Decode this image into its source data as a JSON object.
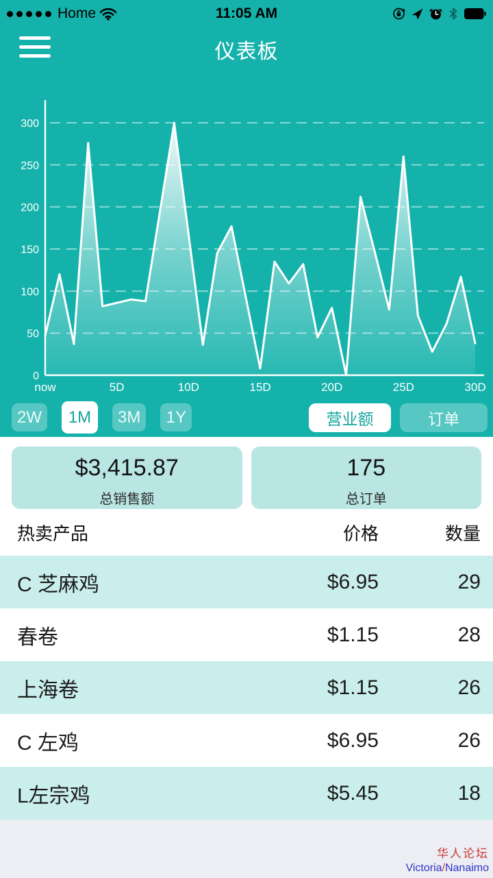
{
  "status_bar": {
    "carrier": "Home",
    "time": "11:05 AM",
    "signal_dots": 5,
    "right_icons": [
      "rotation-lock",
      "location",
      "alarm",
      "bluetooth",
      "battery-full"
    ]
  },
  "nav": {
    "title": "仪表板"
  },
  "chart_data": {
    "type": "area",
    "series": [
      {
        "name": "营业额",
        "values": [
          47,
          120,
          37,
          276,
          82,
          86,
          90,
          88,
          194,
          300,
          168,
          36,
          145,
          177,
          92,
          8,
          135,
          109,
          132,
          45,
          80,
          0,
          212,
          146,
          78,
          260,
          71,
          28,
          61,
          117,
          38
        ]
      }
    ],
    "x_unit": "day",
    "x_tick_days": [
      0,
      5,
      10,
      15,
      20,
      25,
      30
    ],
    "x_tick_labels": [
      "now",
      "5D",
      "10D",
      "15D",
      "20D",
      "25D",
      "30D"
    ],
    "y_ticks": [
      0,
      50,
      100,
      150,
      200,
      250,
      300
    ],
    "ylim": [
      0,
      300
    ],
    "grid": "horizontal-dashed",
    "legend": "none",
    "line_color": "#ffffff",
    "fill": "white-vertical-fade-gradient"
  },
  "controls": {
    "ranges": [
      {
        "label": "2W",
        "selected": false
      },
      {
        "label": "1M",
        "selected": true
      },
      {
        "label": "3M",
        "selected": false
      },
      {
        "label": "1Y",
        "selected": false
      }
    ],
    "metrics": [
      {
        "label": "营业额",
        "selected": true
      },
      {
        "label": "订单",
        "selected": false
      }
    ]
  },
  "stats": {
    "cards": [
      {
        "value": "$3,415.87",
        "label": "总销售额"
      },
      {
        "value": "175",
        "label": "总订单"
      }
    ]
  },
  "table": {
    "headers": [
      "热卖产品",
      "价格",
      "数量"
    ],
    "rows": [
      {
        "name": "C 芝麻鸡",
        "price": "$6.95",
        "qty": "29"
      },
      {
        "name": "春卷",
        "price": "$1.15",
        "qty": "28"
      },
      {
        "name": "上海卷",
        "price": "$1.15",
        "qty": "26"
      },
      {
        "name": "C 左鸡",
        "price": "$6.95",
        "qty": "26"
      },
      {
        "name": "L左宗鸡",
        "price": "$5.45",
        "qty": "18"
      }
    ]
  },
  "watermark": {
    "line1": "华人论坛",
    "line2_left": "Victoria",
    "slash": "/",
    "line2_right": "Nanaimo"
  },
  "colors": {
    "teal_bg": "#15b2ab",
    "selected_btn_text": "#13a59e",
    "card_mint": "#b9e6e3",
    "row_mint": "#c9eeec",
    "footer_bg": "#ededf4",
    "chart_line": "#ffffff",
    "watermark_red": "#cb3a34",
    "watermark_blue": "#2e35c5",
    "status_text": "#000000"
  }
}
